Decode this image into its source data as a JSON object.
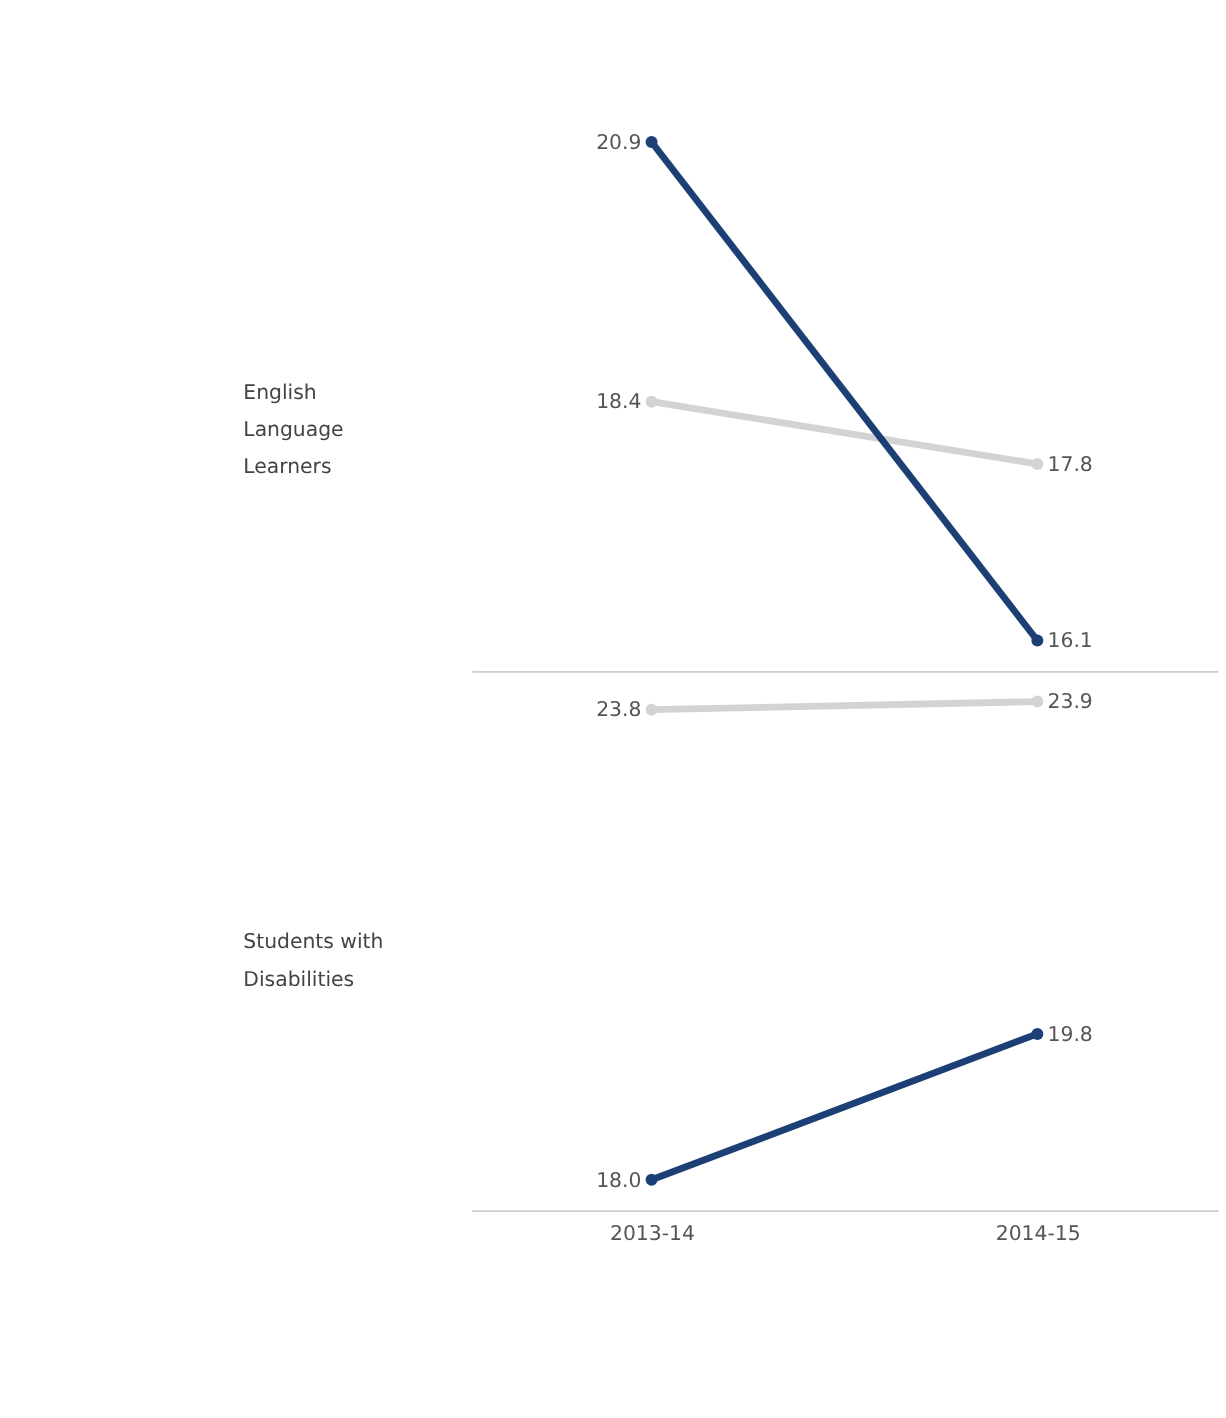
{
  "chart_data": [
    {
      "type": "line",
      "ylabel": "English Language Learners",
      "categories": [
        "2013-14",
        "2014-15"
      ],
      "tick_labels": false,
      "marker": "circle",
      "line_style": "solid",
      "series": [
        {
          "color": "#d3d3d3",
          "values": [
            18.4,
            17.8
          ],
          "value_labels": [
            "18.4",
            "17.8"
          ]
        },
        {
          "color": "#1c3f75",
          "values": [
            20.9,
            16.1
          ],
          "value_labels": [
            "20.9",
            "16.1"
          ]
        }
      ]
    },
    {
      "type": "line",
      "ylabel": "Students with Disabilities",
      "categories": [
        "2013-14",
        "2014-15"
      ],
      "tick_labels": "x",
      "marker": "circle",
      "line_style": "solid",
      "series": [
        {
          "color": "#d3d3d3",
          "values": [
            23.8,
            23.9
          ],
          "value_labels": [
            "23.8",
            "23.9"
          ]
        },
        {
          "color": "#1c3f75",
          "values": [
            18.0,
            19.8
          ],
          "value_labels": [
            "18.0",
            "19.8"
          ]
        }
      ]
    }
  ]
}
